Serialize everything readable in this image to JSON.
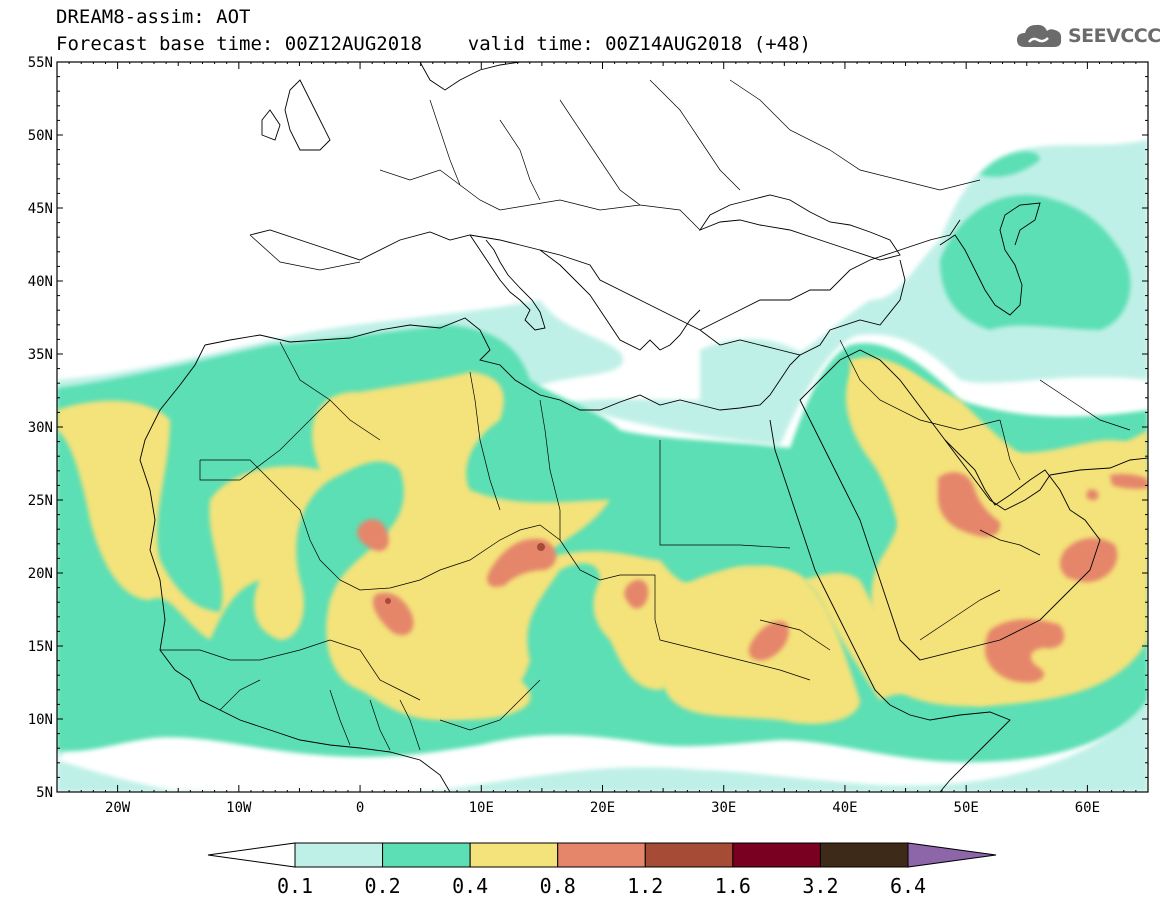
{
  "header": {
    "line1": "DREAM8-assim: AOT",
    "line2": "Forecast base time: 00Z12AUG2018    valid time: 00Z14AUG2018 (+48)"
  },
  "logo": {
    "text": "SEEVCCC",
    "icon": "cloud-icon"
  },
  "map": {
    "lat_labels": [
      "55N",
      "50N",
      "45N",
      "40N",
      "35N",
      "30N",
      "25N",
      "20N",
      "15N",
      "10N",
      "5N"
    ],
    "lon_labels": [
      "20W",
      "10W",
      "0",
      "10E",
      "20E",
      "30E",
      "40E",
      "50E",
      "60E"
    ],
    "lat_range": [
      5,
      55
    ],
    "lon_range": [
      -25,
      65
    ]
  },
  "legend": {
    "levels": [
      "0.1",
      "0.2",
      "0.4",
      "0.8",
      "1.2",
      "1.6",
      "3.2",
      "6.4"
    ],
    "colors": [
      "#bff0e7",
      "#5cdfb4",
      "#f4e27a",
      "#e5866a",
      "#a64b35",
      "#7a0022",
      "#3e2a18",
      "#8c66a8"
    ],
    "low_color": "#ffffff"
  }
}
